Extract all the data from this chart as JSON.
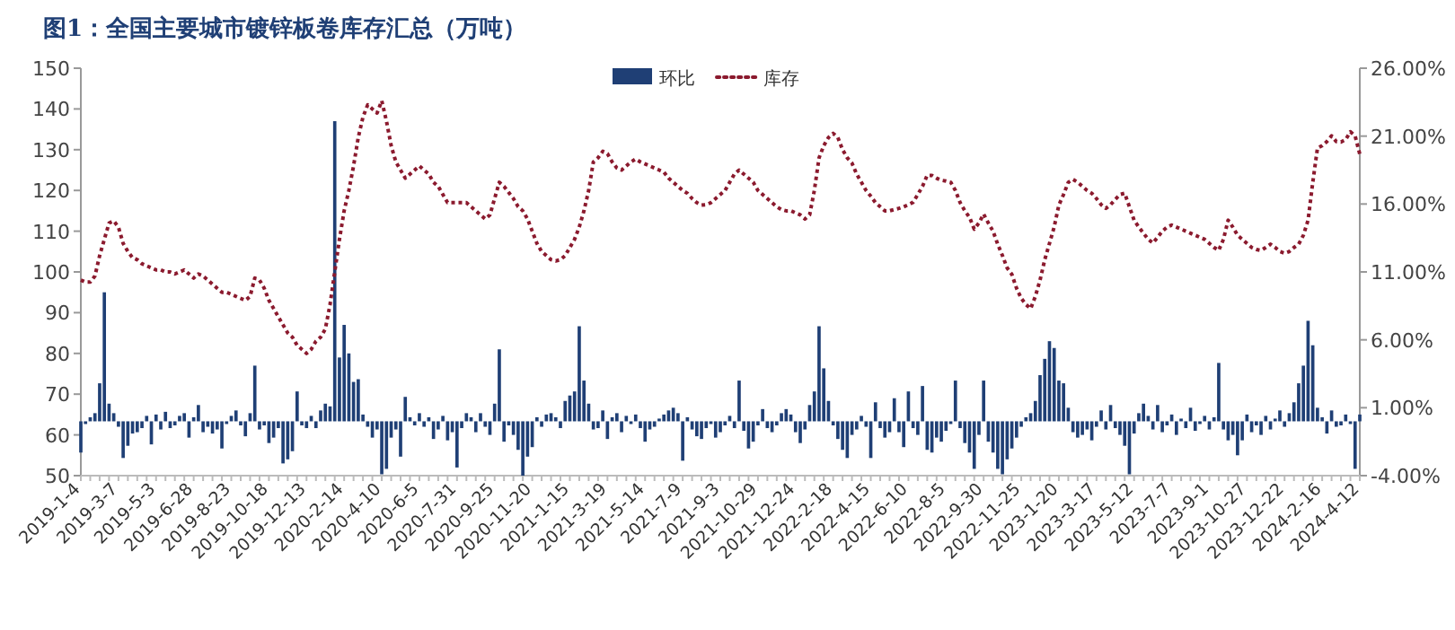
{
  "chart_data": {
    "type": "bar",
    "title": "图1：全国主要城市镀锌板卷库存汇总（万吨）",
    "categories": [
      "2019-1-4",
      null,
      null,
      null,
      null,
      null,
      null,
      null,
      "2019-3-7",
      null,
      null,
      null,
      null,
      null,
      null,
      null,
      "2019-5-3",
      null,
      null,
      null,
      null,
      null,
      null,
      null,
      "2019-6-28",
      null,
      null,
      null,
      null,
      null,
      null,
      null,
      "2019-8-23",
      null,
      null,
      null,
      null,
      null,
      null,
      null,
      "2019-10-18",
      null,
      null,
      null,
      null,
      null,
      null,
      null,
      "2019-12-13",
      null,
      null,
      null,
      null,
      null,
      null,
      null,
      "2020-2-14",
      null,
      null,
      null,
      null,
      null,
      null,
      null,
      "2020-4-10",
      null,
      null,
      null,
      null,
      null,
      null,
      null,
      "2020-6-5",
      null,
      null,
      null,
      null,
      null,
      null,
      null,
      "2020-7-31",
      null,
      null,
      null,
      null,
      null,
      null,
      null,
      "2020-9-25",
      null,
      null,
      null,
      null,
      null,
      null,
      null,
      "2020-11-20",
      null,
      null,
      null,
      null,
      null,
      null,
      null,
      "2021-1-15",
      null,
      null,
      null,
      null,
      null,
      null,
      null,
      "2021-3-19",
      null,
      null,
      null,
      null,
      null,
      null,
      null,
      "2021-5-14",
      null,
      null,
      null,
      null,
      null,
      null,
      null,
      "2021-7-9",
      null,
      null,
      null,
      null,
      null,
      null,
      null,
      "2021-9-3",
      null,
      null,
      null,
      null,
      null,
      null,
      null,
      "2021-10-29",
      null,
      null,
      null,
      null,
      null,
      null,
      null,
      "2021-12-24",
      null,
      null,
      null,
      null,
      null,
      null,
      null,
      "2022-2-18",
      null,
      null,
      null,
      null,
      null,
      null,
      null,
      "2022-4-15",
      null,
      null,
      null,
      null,
      null,
      null,
      null,
      "2022-6-10",
      null,
      null,
      null,
      null,
      null,
      null,
      null,
      "2022-8-5",
      null,
      null,
      null,
      null,
      null,
      null,
      null,
      "2022-9-30",
      null,
      null,
      null,
      null,
      null,
      null,
      null,
      "2022-11-25",
      null,
      null,
      null,
      null,
      null,
      null,
      null,
      "2023-1-20",
      null,
      null,
      null,
      null,
      null,
      null,
      null,
      "2023-3-17",
      null,
      null,
      null,
      null,
      null,
      null,
      null,
      "2023-5-12",
      null,
      null,
      null,
      null,
      null,
      null,
      null,
      "2023-7-7",
      null,
      null,
      null,
      null,
      null,
      null,
      null,
      "2023-9-1",
      null,
      null,
      null,
      null,
      null,
      null,
      null,
      "2023-10-27",
      null,
      null,
      null,
      null,
      null,
      null,
      null,
      "2023-12-22",
      null,
      null,
      null,
      null,
      null,
      null,
      null,
      "2024-2-16",
      null,
      null,
      null,
      null,
      null,
      null,
      null,
      "2024-4-12"
    ],
    "series": [
      {
        "name": "环比",
        "axis": "y2",
        "color": "#1f3f75",
        "values": [
          -2.3,
          -0.2,
          0.3,
          0.6,
          2.8,
          9.5,
          1.3,
          0.6,
          -0.4,
          -2.7,
          -1.8,
          -0.9,
          -0.8,
          -0.5,
          0.4,
          -1.7,
          0.5,
          -0.6,
          0.7,
          -0.5,
          -0.3,
          0.4,
          0.6,
          -1.2,
          0.3,
          1.2,
          -0.8,
          -0.4,
          -0.9,
          -0.6,
          -2.0,
          -0.2,
          0.4,
          0.8,
          -0.3,
          -1.1,
          0.6,
          4.1,
          -0.6,
          -0.3,
          -1.6,
          -1.2,
          -0.5,
          -3.1,
          -2.8,
          -2.2,
          2.2,
          -0.3,
          -0.5,
          0.4,
          -0.5,
          0.8,
          1.3,
          1.1,
          22.1,
          4.7,
          7.1,
          5.0,
          2.9,
          3.1,
          0.5,
          -0.4,
          -1.2,
          -0.6,
          -3.9,
          -3.5,
          -1.2,
          -0.6,
          -2.6,
          1.8,
          0.3,
          -0.3,
          0.6,
          -0.4,
          0.3,
          -1.3,
          -0.6,
          0.4,
          -1.4,
          -0.8,
          -3.4,
          -0.5,
          0.6,
          0.3,
          -0.8,
          0.6,
          -0.4,
          -1.0,
          1.3,
          5.3,
          -1.5,
          -0.3,
          -1.0,
          -2.1,
          -4.0,
          -2.6,
          -1.9,
          0.3,
          -0.4,
          0.5,
          0.6,
          0.3,
          -0.5,
          1.5,
          1.9,
          2.2,
          7.0,
          3.0,
          1.3,
          -0.6,
          -0.5,
          0.8,
          -1.3,
          0.3,
          0.6,
          -0.8,
          0.4,
          -0.2,
          0.5,
          -0.5,
          -1.5,
          -0.6,
          -0.4,
          0.2,
          0.5,
          0.8,
          1.0,
          0.6,
          -2.9,
          0.3,
          -0.6,
          -1.1,
          -1.3,
          -0.5,
          -0.2,
          -1.2,
          -0.8,
          -0.3,
          0.4,
          -0.5,
          3.0,
          -0.7,
          -2.0,
          -1.5,
          -0.3,
          0.9,
          -0.5,
          -0.8,
          -0.3,
          0.6,
          0.9,
          0.5,
          -0.8,
          -1.6,
          -0.6,
          1.2,
          2.2,
          7.0,
          3.9,
          1.5,
          -0.3,
          -1.3,
          -2.1,
          -2.7,
          -1.0,
          -0.6,
          0.4,
          -0.4,
          -2.7,
          1.4,
          -0.5,
          -1.2,
          -0.8,
          1.7,
          -0.8,
          -1.9,
          2.2,
          -0.5,
          -1.0,
          2.6,
          -2.1,
          -2.3,
          -1.2,
          -1.5,
          -0.7,
          -0.2,
          3.0,
          -0.5,
          -1.6,
          -2.3,
          -3.5,
          -1.0,
          3.0,
          -1.5,
          -2.3,
          -3.5,
          -3.9,
          -2.8,
          -2.0,
          -1.2,
          -0.4,
          0.3,
          0.6,
          1.5,
          3.4,
          4.6,
          5.9,
          5.4,
          3.0,
          2.8,
          1.0,
          -0.8,
          -1.2,
          -1.0,
          -0.6,
          -1.4,
          -0.4,
          0.8,
          -0.6,
          1.2,
          -0.5,
          -1.0,
          -1.8,
          -3.9,
          -0.9,
          0.6,
          1.3,
          0.4,
          -0.6,
          1.2,
          -0.8,
          -0.3,
          0.5,
          -1.0,
          0.2,
          -0.5,
          1.0,
          -0.7,
          -0.2,
          0.4,
          -0.6,
          0.3,
          4.3,
          -0.6,
          -1.4,
          -1.0,
          -2.5,
          -1.4,
          0.5,
          -0.8,
          -0.3,
          -1.0,
          0.4,
          -0.6,
          0.2,
          0.8,
          -0.4,
          0.6,
          1.4,
          2.8,
          4.1,
          7.4,
          5.6,
          1.0,
          0.3,
          -0.9,
          0.8,
          -0.4,
          -0.3,
          0.5,
          -0.2,
          -3.5,
          0.5
        ]
      },
      {
        "name": "库存",
        "type": "line",
        "axis": "y",
        "color": "#8b1a2e",
        "line_style": "dotted",
        "values": [
          98,
          97.5,
          97.5,
          99,
          104,
          108,
          112,
          112.5,
          111,
          107,
          105,
          103.5,
          103,
          102,
          101.5,
          101,
          100.5,
          100.5,
          100,
          100,
          99.5,
          100,
          100.5,
          99.5,
          98.5,
          99.5,
          99,
          98,
          97,
          96,
          95,
          95,
          94.5,
          94,
          93.5,
          93,
          94,
          98.5,
          98,
          96,
          93,
          91,
          89,
          87,
          85,
          84,
          82,
          81,
          80,
          81,
          83,
          84,
          86,
          92,
          100,
          108,
          115,
          120,
          126,
          133,
          138,
          141,
          140,
          139,
          142,
          137,
          131,
          127,
          125,
          123,
          124,
          125,
          126,
          125,
          124,
          122,
          121,
          119,
          117,
          117,
          117,
          117,
          117,
          116,
          115,
          114,
          113,
          114,
          118,
          122,
          121,
          119.5,
          118,
          116,
          115,
          113,
          110,
          107,
          105,
          104,
          103,
          102.7,
          103,
          104,
          106,
          108,
          111,
          115,
          120,
          127,
          128,
          129.6,
          129,
          127,
          125.5,
          125,
          126,
          127,
          127.7,
          127,
          126.5,
          126,
          125.5,
          125,
          124.5,
          123,
          122,
          121,
          120,
          119.3,
          118,
          117,
          116.4,
          116.5,
          117,
          118,
          119,
          120,
          122,
          124,
          125,
          124,
          123,
          122,
          120,
          119,
          118,
          117,
          116,
          115.3,
          115,
          115,
          114.5,
          114,
          113,
          114,
          120,
          128,
          131,
          133,
          134,
          133,
          130,
          128,
          126.7,
          124,
          122,
          120,
          118.6,
          117,
          116,
          115,
          115,
          115.3,
          115.6,
          116,
          116.5,
          117.1,
          119,
          121,
          123.7,
          123.7,
          123,
          122.5,
          122.3,
          122,
          120,
          117,
          115,
          113.4,
          110.5,
          112,
          114.2,
          112,
          110,
          106.8,
          104,
          101,
          99.4,
          96,
          93.5,
          92,
          91,
          94,
          98,
          103,
          107,
          111,
          116.4,
          119,
          122,
          122.7,
          122,
          121,
          120,
          119.3,
          118,
          116.5,
          115.6,
          116.5,
          117.8,
          119,
          119.3,
          116,
          112.7,
          111,
          109.5,
          108,
          107.1,
          108.5,
          110,
          111,
          111.5,
          111,
          110.5,
          110,
          109.5,
          109,
          108.5,
          108,
          107,
          106,
          105.3,
          108,
          112.7,
          111,
          109,
          108,
          107,
          106,
          105.5,
          105.3,
          106,
          106.8,
          106,
          105,
          104.6,
          105,
          106,
          106.8,
          109,
          112.7,
          122,
          130.4,
          131,
          132,
          133.4,
          132,
          131.9,
          132.5,
          134.4,
          133.4,
          128.9
        ]
      }
    ],
    "ylim": [
      50,
      150
    ],
    "yticks": [
      50,
      60,
      70,
      80,
      90,
      100,
      110,
      120,
      130,
      140,
      150
    ],
    "y2lim": [
      -4,
      26
    ],
    "y2ticks": [
      {
        "value": -4,
        "label": "-4.00%"
      },
      {
        "value": 1,
        "label": "1.00%"
      },
      {
        "value": 6,
        "label": "6.00%"
      },
      {
        "value": 11,
        "label": "11.00%"
      },
      {
        "value": 16,
        "label": "16.00%"
      },
      {
        "value": 21,
        "label": "21.00%"
      },
      {
        "value": 26,
        "label": "26.00%"
      }
    ],
    "legend": "top",
    "grid": false
  }
}
